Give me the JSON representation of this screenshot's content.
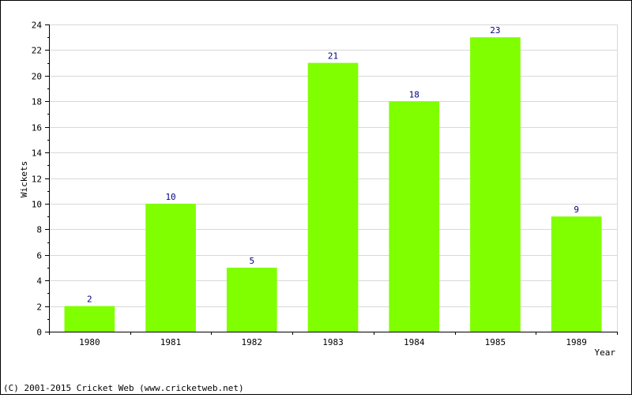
{
  "chart_data": {
    "type": "bar",
    "categories": [
      "1980",
      "1981",
      "1982",
      "1983",
      "1984",
      "1985",
      "1989"
    ],
    "values": [
      2,
      10,
      5,
      21,
      18,
      23,
      9
    ],
    "xlabel": "Year",
    "ylabel": "Wickets",
    "ylim": [
      0,
      24
    ],
    "yticks": [
      0,
      2,
      4,
      6,
      8,
      10,
      12,
      14,
      16,
      18,
      20,
      22,
      24
    ],
    "grid": true,
    "bar_color": "#80ff00",
    "label_color": "#000080"
  },
  "footer": {
    "copyright": "(C) 2001-2015 Cricket Web (www.cricketweb.net)"
  }
}
